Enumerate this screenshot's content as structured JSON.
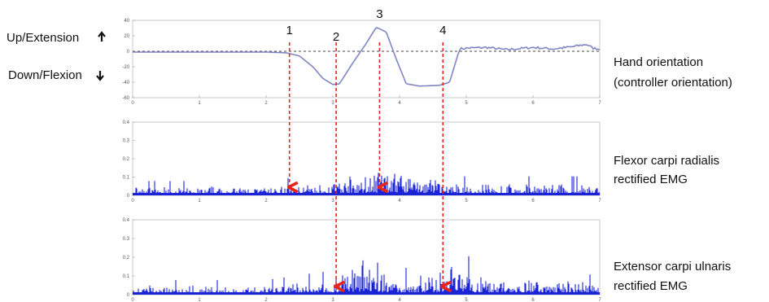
{
  "chart_data": [
    {
      "type": "line",
      "left_labels": [
        "Up/Extension",
        "Down/Flexion"
      ],
      "right_label_lines": [
        "Hand orientation",
        "(controller orientation)"
      ],
      "xlim": [
        0,
        7
      ],
      "ylim": [
        -60,
        40
      ],
      "x_ticks": [
        "0",
        "1",
        "2",
        "3",
        "4",
        "5",
        "6",
        "7"
      ],
      "y_ticks": [
        "40",
        "20",
        "0",
        "-20",
        "-40",
        "-60"
      ],
      "color": "#7f86c4",
      "baseline": {
        "y": 0,
        "style": "dashed"
      },
      "series": [
        {
          "x": [
            0,
            1,
            2,
            2.3,
            2.5,
            2.7,
            2.85,
            3.0,
            3.1,
            3.3,
            3.5,
            3.65,
            3.8,
            3.95,
            4.1,
            4.3,
            4.6,
            4.75,
            4.9,
            5.0,
            5.3,
            5.6,
            6.0,
            6.3,
            6.6,
            6.8,
            6.9,
            7.0
          ],
          "y": [
            -1,
            -1,
            -1,
            -2,
            -6,
            -20,
            -35,
            -43,
            -42,
            -15,
            10,
            31,
            25,
            -10,
            -42,
            -45,
            -44,
            -40,
            3,
            4,
            5,
            2,
            5,
            3,
            6,
            9,
            4,
            3
          ]
        }
      ],
      "grid": false
    },
    {
      "type": "area",
      "right_label_lines": [
        "Flexor carpi radialis",
        "rectified EMG"
      ],
      "xlim": [
        0,
        7
      ],
      "ylim": [
        0,
        0.4
      ],
      "x_ticks": [
        "0",
        "1",
        "2",
        "3",
        "4",
        "5",
        "6",
        "7"
      ],
      "y_ticks": [
        "0.4",
        "0.3",
        "0.2",
        "0.1",
        "0"
      ],
      "color": "#1a24d6",
      "envelope": {
        "x": [
          0,
          1,
          2,
          2.5,
          3.0,
          3.3,
          3.5,
          3.7,
          3.9,
          4.2,
          4.5,
          4.8,
          5.0,
          6.0,
          7.0
        ],
        "y": [
          0.03,
          0.03,
          0.03,
          0.04,
          0.05,
          0.07,
          0.07,
          0.09,
          0.1,
          0.09,
          0.06,
          0.04,
          0.04,
          0.04,
          0.04
        ]
      }
    },
    {
      "type": "area",
      "right_label_lines": [
        "Extensor carpi ulnaris",
        "rectified EMG"
      ],
      "xlim": [
        0,
        7
      ],
      "ylim": [
        0,
        0.4
      ],
      "x_ticks": [
        "0",
        "1",
        "2",
        "3",
        "4",
        "5",
        "6",
        "7"
      ],
      "y_ticks": [
        "0.4",
        "0.3",
        "0.2",
        "0.1",
        "0"
      ],
      "color": "#1a24d6",
      "envelope": {
        "x": [
          0,
          1,
          2,
          2.5,
          3.0,
          3.2,
          3.4,
          3.6,
          3.8,
          4.0,
          4.2,
          4.4,
          4.6,
          4.75,
          4.85,
          5.0,
          5.3,
          6.0,
          7.0
        ],
        "y": [
          0.03,
          0.03,
          0.03,
          0.04,
          0.05,
          0.09,
          0.11,
          0.13,
          0.07,
          0.06,
          0.05,
          0.07,
          0.09,
          0.12,
          0.13,
          0.08,
          0.07,
          0.05,
          0.04
        ]
      }
    }
  ],
  "events": [
    {
      "label": "1",
      "x": 2.35,
      "ends_in": [
        1
      ]
    },
    {
      "label": "2",
      "x": 3.05,
      "ends_in": [
        2
      ]
    },
    {
      "label": "3",
      "x": 3.7,
      "ends_in": [
        1
      ]
    },
    {
      "label": "4",
      "x": 4.65,
      "ends_in": [
        2
      ]
    }
  ],
  "arrow_color": "#e8231b"
}
